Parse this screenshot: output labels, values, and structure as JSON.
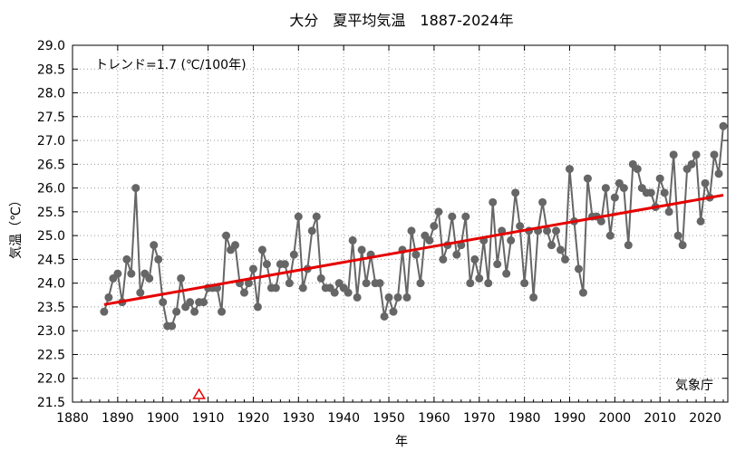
{
  "chart_data": {
    "type": "line",
    "title": "大分　夏平均気温　1887-2024年",
    "xlabel": "年",
    "ylabel": "気温（℃）",
    "annotation": "トレンド=1.7 (℃/100年)",
    "source": "気象庁",
    "xlim": [
      1880,
      2025
    ],
    "ylim": [
      21.5,
      29.0
    ],
    "x_ticks": [
      "1880",
      "1890",
      "1900",
      "1910",
      "1920",
      "1930",
      "1940",
      "1950",
      "1960",
      "1970",
      "1980",
      "1990",
      "2000",
      "2010",
      "2020"
    ],
    "y_ticks": [
      "21.5",
      "22.0",
      "22.5",
      "23.0",
      "23.5",
      "24.0",
      "24.5",
      "25.0",
      "25.5",
      "26.0",
      "26.5",
      "27.0",
      "27.5",
      "28.0",
      "28.5",
      "29.0"
    ],
    "grid": true,
    "colors": {
      "series": "#666666",
      "trend": "#e60000",
      "marker": "#e60000"
    },
    "trend": {
      "x": [
        1887,
        2024
      ],
      "y": [
        23.55,
        25.85
      ]
    },
    "station_change_marker": {
      "x": 1908,
      "y": 21.55,
      "shape": "triangle"
    },
    "series": [
      {
        "x": [
          1887,
          1888,
          1889,
          1890,
          1891,
          1892,
          1893,
          1894,
          1895,
          1896,
          1897,
          1898,
          1899,
          1900,
          1901,
          1902,
          1903,
          1904,
          1905,
          1906,
          1907,
          1908,
          1909,
          1910,
          1911,
          1912,
          1913,
          1914,
          1915,
          1916,
          1917,
          1918,
          1919,
          1920,
          1921,
          1922,
          1923,
          1924,
          1925,
          1926,
          1927,
          1928,
          1929,
          1930,
          1931,
          1932,
          1933,
          1934,
          1935,
          1936,
          1937,
          1938,
          1939,
          1940,
          1941,
          1942,
          1943,
          1944,
          1945,
          1946,
          1947,
          1948,
          1949,
          1950,
          1951,
          1952,
          1953,
          1954,
          1955,
          1956,
          1957,
          1958,
          1959,
          1960,
          1961,
          1962,
          1963,
          1964,
          1965,
          1966,
          1967,
          1968,
          1969,
          1970,
          1971,
          1972,
          1973,
          1974,
          1975,
          1976,
          1977,
          1978,
          1979,
          1980,
          1981,
          1982,
          1983,
          1984,
          1985,
          1986,
          1987,
          1988,
          1989,
          1990,
          1991,
          1992,
          1993,
          1994,
          1995,
          1996,
          1997,
          1998,
          1999,
          2000,
          2001,
          2002,
          2003,
          2004,
          2005,
          2006,
          2007,
          2008,
          2009,
          2010,
          2011,
          2012,
          2013,
          2014,
          2015,
          2016,
          2017,
          2018,
          2019,
          2020,
          2021,
          2022,
          2023,
          2024
        ],
        "values": [
          23.4,
          23.7,
          24.1,
          24.2,
          23.6,
          24.5,
          24.2,
          26.0,
          23.8,
          24.2,
          24.1,
          24.8,
          24.5,
          23.6,
          23.1,
          23.1,
          23.4,
          24.1,
          23.5,
          23.6,
          23.4,
          23.6,
          23.6,
          23.9,
          23.9,
          23.9,
          23.4,
          25.0,
          24.7,
          24.8,
          24.0,
          23.8,
          24.0,
          24.3,
          23.5,
          24.7,
          24.4,
          23.9,
          23.9,
          24.4,
          24.4,
          24.0,
          24.6,
          25.4,
          23.9,
          24.3,
          25.1,
          25.4,
          24.1,
          23.9,
          23.9,
          23.8,
          24.0,
          23.9,
          23.8,
          24.9,
          23.7,
          24.7,
          24.0,
          24.6,
          24.0,
          24.0,
          23.3,
          23.7,
          23.4,
          23.7,
          24.7,
          23.7,
          25.1,
          24.6,
          24.0,
          25.0,
          24.9,
          25.2,
          25.5,
          24.5,
          24.8,
          25.4,
          24.6,
          24.8,
          25.4,
          24.0,
          24.5,
          24.1,
          24.9,
          24.0,
          25.7,
          24.4,
          25.1,
          24.2,
          24.9,
          25.9,
          25.2,
          24.0,
          25.1,
          23.7,
          25.1,
          25.7,
          25.1,
          24.8,
          25.1,
          24.7,
          24.5,
          26.4,
          25.3,
          24.3,
          23.8,
          26.2,
          25.4,
          25.4,
          25.3,
          26.0,
          25.0,
          25.8,
          26.1,
          26.0,
          24.8,
          26.5,
          26.4,
          26.0,
          25.9,
          25.9,
          25.6,
          26.2,
          25.9,
          25.5,
          26.7,
          25.0,
          24.8,
          26.4,
          26.5,
          26.7,
          25.3,
          26.1,
          25.8,
          26.7,
          26.3,
          27.3
        ]
      }
    ]
  }
}
